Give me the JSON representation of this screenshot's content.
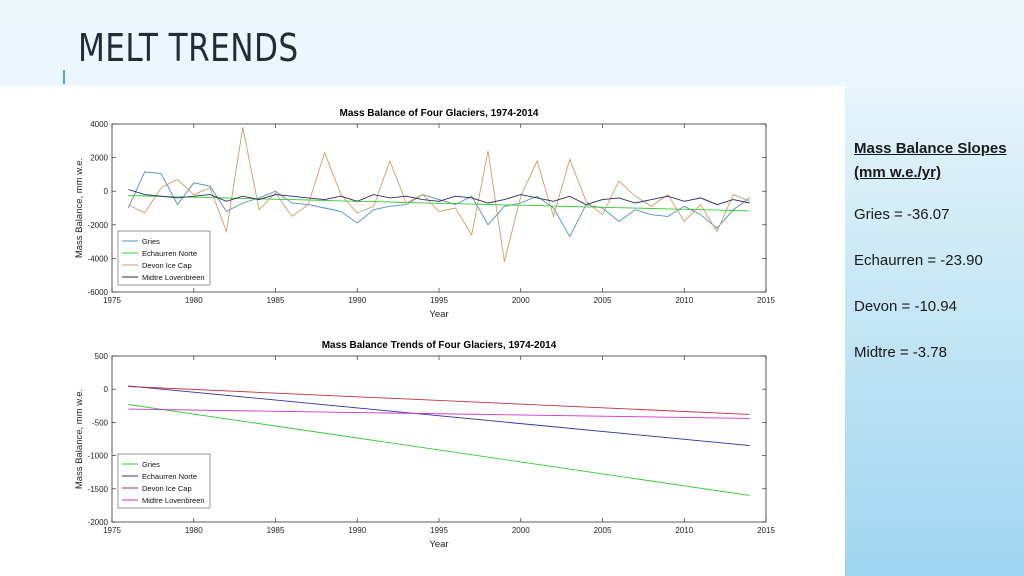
{
  "slide": {
    "title": "MELT TRENDS",
    "slopes_heading": "Mass Balance Slopes (mm w.e./yr)",
    "slopes": [
      "Gries = -36.07",
      "Echaurren = -23.90",
      "Devon = -10.94",
      "Midtre = -3.78"
    ]
  },
  "chart_data": [
    {
      "type": "line",
      "title": "Mass Balance of Four Glaciers, 1974-2014",
      "xlabel": "Year",
      "ylabel": "Mass Balance, mm w.e.",
      "xlim": [
        1975,
        2015
      ],
      "ylim": [
        -6000,
        4000
      ],
      "xticks": [
        1975,
        1980,
        1985,
        1990,
        1995,
        2000,
        2005,
        2010,
        2015
      ],
      "yticks": [
        -6000,
        -4000,
        -2000,
        0,
        2000,
        4000
      ],
      "legend_position": "bottom-left",
      "grid": false,
      "x": [
        1976,
        1977,
        1978,
        1979,
        1980,
        1981,
        1982,
        1983,
        1984,
        1985,
        1986,
        1987,
        1988,
        1989,
        1990,
        1991,
        1992,
        1993,
        1994,
        1995,
        1996,
        1997,
        1998,
        1999,
        2000,
        2001,
        2002,
        2003,
        2004,
        2005,
        2006,
        2007,
        2008,
        2009,
        2010,
        2011,
        2012,
        2013,
        2014
      ],
      "series": [
        {
          "name": "Gries",
          "color": "#4f8fc0",
          "values": [
            -1000,
            1150,
            1050,
            -800,
            500,
            300,
            -1200,
            -700,
            -400,
            0,
            -700,
            -800,
            -1000,
            -1200,
            -1900,
            -1100,
            -900,
            -800,
            -200,
            -500,
            -800,
            -300,
            -2000,
            -900,
            -700,
            -300,
            -1000,
            -2700,
            -800,
            -1000,
            -1800,
            -1100,
            -1400,
            -1500,
            -900,
            -1400,
            -2200,
            -1100,
            -400
          ]
        },
        {
          "name": "Echaurren Norte",
          "color": "#33cc33",
          "values": [
            -250,
            -285,
            -310,
            -335,
            -355,
            -380,
            -405,
            -430,
            -455,
            -480,
            -500,
            -525,
            -550,
            -575,
            -600,
            -620,
            -645,
            -670,
            -695,
            -720,
            -740,
            -765,
            -790,
            -815,
            -840,
            -860,
            -885,
            -910,
            -935,
            -960,
            -980,
            -1005,
            -1030,
            -1055,
            -1080,
            -1100,
            -1125,
            -1150,
            -1175
          ]
        },
        {
          "name": "Devon Ice Cap",
          "color": "#c8a060",
          "values": [
            -800,
            -1300,
            200,
            700,
            -200,
            200,
            -2400,
            3800,
            -1100,
            -100,
            -1500,
            -800,
            2300,
            -200,
            -1300,
            -900,
            1800,
            -700,
            -200,
            -1200,
            -1000,
            -2600,
            2400,
            -4200,
            -300,
            1800,
            -1500,
            1900,
            -600,
            -1400,
            600,
            -300,
            -900,
            -200,
            -1800,
            -800,
            -2400,
            -200,
            -600
          ]
        },
        {
          "name": "Midtre Lovenbreen",
          "color": "#2a2a60",
          "values": [
            100,
            -200,
            -300,
            -400,
            -300,
            -200,
            -600,
            -300,
            -500,
            -200,
            -300,
            -400,
            -500,
            -300,
            -600,
            -200,
            -400,
            -300,
            -500,
            -600,
            -300,
            -400,
            -700,
            -500,
            -200,
            -400,
            -600,
            -300,
            -800,
            -500,
            -400,
            -700,
            -500,
            -300,
            -600,
            -400,
            -800,
            -500,
            -700
          ]
        }
      ]
    },
    {
      "type": "line",
      "title": "Mass Balance Trends of Four Glaciers, 1974-2014",
      "xlabel": "Year",
      "ylabel": "Mass Balance, mm w.e.",
      "xlim": [
        1975,
        2015
      ],
      "ylim": [
        -2000,
        500
      ],
      "xticks": [
        1975,
        1980,
        1985,
        1990,
        1995,
        2000,
        2005,
        2010,
        2015
      ],
      "yticks": [
        -2000,
        -1500,
        -1000,
        -500,
        0,
        500
      ],
      "legend_position": "bottom-left",
      "grid": false,
      "x": [
        1976,
        2014
      ],
      "series": [
        {
          "name": "Gries",
          "color": "#33cc33",
          "values": [
            -230,
            -1600
          ]
        },
        {
          "name": "Echaurren Norte",
          "color": "#3030a0",
          "values": [
            50,
            -850
          ]
        },
        {
          "name": "Devon Ice Cap",
          "color": "#c03040",
          "values": [
            40,
            -380
          ]
        },
        {
          "name": "Midtre Lovenbreen",
          "color": "#cc33cc",
          "values": [
            -300,
            -440
          ]
        }
      ]
    }
  ]
}
